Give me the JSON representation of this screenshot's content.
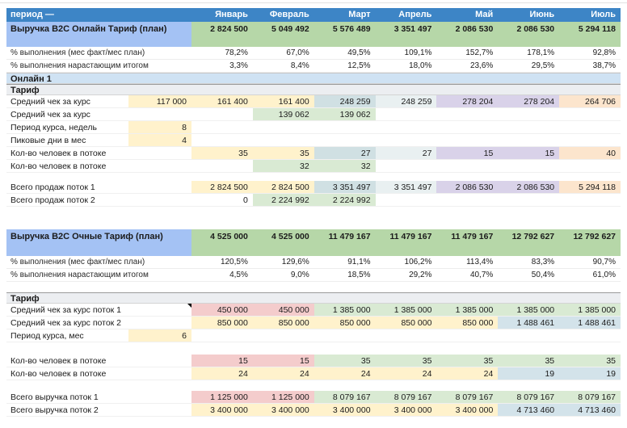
{
  "palette": {
    "header_blue": "#3d85c6",
    "title_label_blue": "#a4c2f4",
    "title_value_green": "#b6d7a8",
    "band_blue": "#cfe2f3",
    "band_gray": "#eceef1",
    "y": "#fff2cc",
    "c": "#d0e0e3",
    "cl": "#e9f0f1",
    "p": "#d9d2e9",
    "o": "#fce5cd",
    "g": "#d9ead3",
    "r": "#f4cccc",
    "b": "#d3e3ea"
  },
  "header": {
    "label": "период —",
    "months": [
      "Январь",
      "Февраль",
      "Март",
      "Апрель",
      "Май",
      "Июнь",
      "Июль"
    ]
  },
  "rows": [
    {
      "type": "header"
    },
    {
      "type": "title",
      "label": "Выручка B2C Онлайн Тариф (план)",
      "cells": [
        "2 824 500",
        "5 049 492",
        "5 576 489",
        "3 351 497",
        "2 086 530",
        "2 086 530",
        "5 294 118"
      ]
    },
    {
      "type": "pct",
      "label": "% выполнения (мес факт/мес план)",
      "cells": [
        "78,2%",
        "67,0%",
        "49,5%",
        "109,1%",
        "152,7%",
        "178,1%",
        "92,8%"
      ]
    },
    {
      "type": "pct",
      "label": "% выполнения нарастающим итогом",
      "cells": [
        "3,3%",
        "8,4%",
        "12,5%",
        "18,0%",
        "23,6%",
        "29,5%",
        "38,7%"
      ]
    },
    {
      "type": "band",
      "style": "blue",
      "label": "Онлайн 1"
    },
    {
      "type": "band",
      "style": "gray",
      "label": "Тариф"
    },
    {
      "type": "data",
      "label": "Средний чек за курс",
      "b": "117 000",
      "bfill": "y",
      "bnote": true,
      "cells": [
        "161 400",
        "161 400",
        "248 259",
        "248 259",
        "278 204",
        "278 204",
        "264 706"
      ],
      "fills": [
        "y",
        "y",
        "c",
        "cl",
        "p",
        "p",
        "o"
      ]
    },
    {
      "type": "data",
      "label": "Средний чек за курс",
      "cells": [
        "",
        "139 062",
        "139 062",
        "",
        "",
        "",
        ""
      ],
      "fills": [
        null,
        "g",
        "g",
        null,
        null,
        null,
        null
      ]
    },
    {
      "type": "data",
      "label": "Период курса, недель",
      "b": "8",
      "bfill": "y"
    },
    {
      "type": "data",
      "label": "Пиковые дни в мес",
      "b": "4",
      "bfill": "y"
    },
    {
      "type": "data",
      "label": "Кол-во человек в потоке",
      "cells": [
        "35",
        "35",
        "27",
        "27",
        "15",
        "15",
        "40"
      ],
      "fills": [
        "y",
        "y",
        "c",
        "cl",
        "p",
        "p",
        "o"
      ]
    },
    {
      "type": "data",
      "label": "Кол-во человек в потоке",
      "cells": [
        "",
        "32",
        "32",
        "",
        "",
        "",
        ""
      ],
      "fills": [
        null,
        "g",
        "g",
        null,
        null,
        null,
        null
      ]
    },
    {
      "type": "gap",
      "h": 10
    },
    {
      "type": "data",
      "label": "Всего продаж поток 1",
      "cells": [
        "2 824 500",
        "2 824 500",
        "3 351 497",
        "3 351 497",
        "2 086 530",
        "2 086 530",
        "5 294 118"
      ],
      "fills": [
        "y",
        "y",
        "c",
        "cl",
        "p",
        "p",
        "o"
      ]
    },
    {
      "type": "data",
      "label": "Всего продаж поток 2",
      "cells": [
        "0",
        "2 224 992",
        "2 224 992",
        "",
        "",
        "",
        ""
      ],
      "fills": [
        null,
        "g",
        "g",
        null,
        null,
        null,
        null
      ]
    },
    {
      "type": "gap",
      "h": 28
    },
    {
      "type": "title",
      "style": "title2",
      "label": "Выручка B2C Очные Тариф (план)",
      "cells": [
        "4 525 000",
        "4 525 000",
        "11 479 167",
        "11 479 167",
        "11 479 167",
        "12 792 627",
        "12 792 627"
      ]
    },
    {
      "type": "pct",
      "label": "% выполнения (мес факт/мес план)",
      "cells": [
        "120,5%",
        "129,6%",
        "91,1%",
        "106,2%",
        "113,4%",
        "83,3%",
        "90,7%"
      ]
    },
    {
      "type": "pct",
      "label": "% выполнения нарастающим итогом",
      "cells": [
        "4,5%",
        "9,0%",
        "18,5%",
        "29,2%",
        "40,7%",
        "50,4%",
        "61,0%"
      ]
    },
    {
      "type": "gap",
      "h": 13
    },
    {
      "type": "band",
      "style": "gray",
      "label": "Тариф"
    },
    {
      "type": "data",
      "label": "Средний чек за курс поток 1",
      "bnote": true,
      "cells": [
        "450 000",
        "450 000",
        "1 385 000",
        "1 385 000",
        "1 385 000",
        "1 385 000",
        "1 385 000"
      ],
      "fills": [
        "r",
        "r",
        "g",
        "g",
        "g",
        "g",
        "g"
      ]
    },
    {
      "type": "data",
      "label": "Средний чек за курс поток 2",
      "cells": [
        "850 000",
        "850 000",
        "850 000",
        "850 000",
        "850 000",
        "1 488 461",
        "1 488 461"
      ],
      "fills": [
        "y",
        "y",
        "y",
        "y",
        "y",
        "b",
        "b"
      ]
    },
    {
      "type": "data",
      "label": "Период курса, мес",
      "b": "6",
      "bfill": "y"
    },
    {
      "type": "gap",
      "h": 15
    },
    {
      "type": "data",
      "label": "Кол-во человек в потоке",
      "cells": [
        "15",
        "15",
        "35",
        "35",
        "35",
        "35",
        "35"
      ],
      "fills": [
        "r",
        "r",
        "g",
        "g",
        "g",
        "g",
        "g"
      ]
    },
    {
      "type": "data",
      "label": "Кол-во человек в потоке",
      "cells": [
        "24",
        "24",
        "24",
        "24",
        "24",
        "19",
        "19"
      ],
      "fills": [
        "y",
        "y",
        "y",
        "y",
        "y",
        "b",
        "b"
      ]
    },
    {
      "type": "gap",
      "h": 13
    },
    {
      "type": "data",
      "label": "Всего выручка поток 1",
      "cells": [
        "1 125 000",
        "1 125 000",
        "8 079 167",
        "8 079 167",
        "8 079 167",
        "8 079 167",
        "8 079 167"
      ],
      "fills": [
        "r",
        "r",
        "g",
        "g",
        "g",
        "g",
        "g"
      ]
    },
    {
      "type": "data",
      "label": "Всего выручка поток 2",
      "cells": [
        "3 400 000",
        "3 400 000",
        "3 400 000",
        "3 400 000",
        "3 400 000",
        "4 713 460",
        "4 713 460"
      ],
      "fills": [
        "y",
        "y",
        "y",
        "y",
        "y",
        "b",
        "b"
      ]
    }
  ]
}
